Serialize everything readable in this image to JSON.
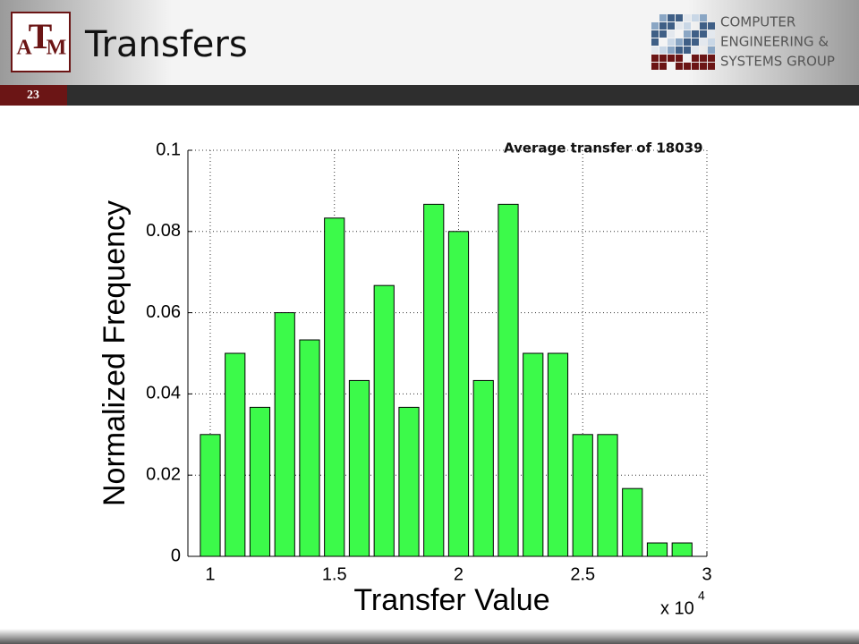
{
  "header": {
    "title": "Transfers",
    "slide_number": "23",
    "logo_letters": [
      "A",
      "T",
      "M"
    ],
    "group_logo": [
      "COMPUTER",
      "ENGINEERING &",
      "SYSTEMS GROUP"
    ]
  },
  "chart_data": {
    "type": "bar",
    "annotation": "Average transfer of 18039",
    "x_label": "Transfer Value",
    "y_label": "Normalized Frequency",
    "x_scale_base": "x 10",
    "x_scale_exponent": "4",
    "x": [
      1.0,
      1.1,
      1.2,
      1.3,
      1.4,
      1.5,
      1.6,
      1.7,
      1.8,
      1.9,
      2.0,
      2.1,
      2.2,
      2.3,
      2.4,
      2.5,
      2.6,
      2.7,
      2.8,
      2.9
    ],
    "values": [
      0.03,
      0.05,
      0.0367,
      0.06,
      0.0533,
      0.0833,
      0.0433,
      0.0667,
      0.0367,
      0.0867,
      0.08,
      0.0433,
      0.0867,
      0.05,
      0.05,
      0.03,
      0.03,
      0.0167,
      0.0033,
      0.0033
    ],
    "color": "#3cfa4a",
    "xlim": [
      0.91,
      3
    ],
    "xticks": [
      1,
      1.5,
      2,
      2.5,
      3
    ],
    "ylim": [
      0,
      0.1
    ],
    "yticks": [
      0,
      0.02,
      0.04,
      0.06,
      0.08,
      0.1
    ],
    "grid": true
  }
}
